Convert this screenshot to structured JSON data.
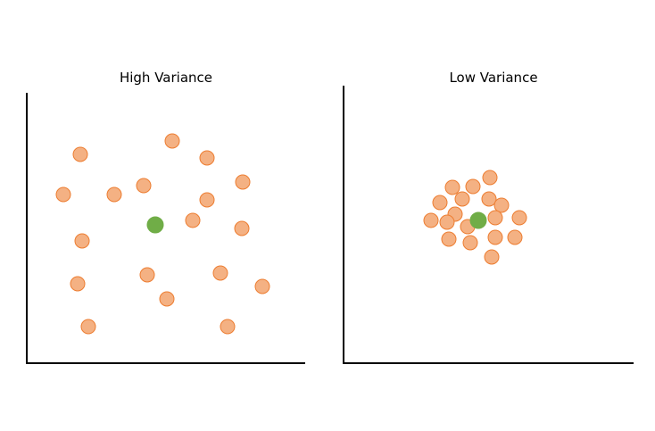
{
  "colors": {
    "sample_fill": "#f4b183",
    "sample_stroke": "#ed7d31",
    "center_fill": "#70ad47",
    "axis": "#000000"
  },
  "panels": [
    {
      "title": "High Variance",
      "samples": [
        [
          90,
          173
        ],
        [
          193,
          158
        ],
        [
          232,
          177
        ],
        [
          71,
          218
        ],
        [
          128,
          218
        ],
        [
          161,
          208
        ],
        [
          272,
          204
        ],
        [
          232,
          224
        ],
        [
          216,
          247
        ],
        [
          92,
          270
        ],
        [
          271,
          256
        ],
        [
          87,
          318
        ],
        [
          165,
          308
        ],
        [
          247,
          306
        ],
        [
          294,
          321
        ],
        [
          187,
          335
        ],
        [
          99,
          366
        ],
        [
          255,
          366
        ]
      ],
      "center": [
        174,
        252
      ]
    },
    {
      "title": "Low Variance",
      "samples": [
        [
          549,
          199
        ],
        [
          507,
          210
        ],
        [
          530,
          209
        ],
        [
          493,
          227
        ],
        [
          518,
          223
        ],
        [
          548,
          223
        ],
        [
          562,
          230
        ],
        [
          510,
          240
        ],
        [
          483,
          247
        ],
        [
          501,
          249
        ],
        [
          524,
          254
        ],
        [
          555,
          244
        ],
        [
          582,
          244
        ],
        [
          503,
          268
        ],
        [
          527,
          272
        ],
        [
          555,
          266
        ],
        [
          577,
          266
        ],
        [
          551,
          288
        ]
      ],
      "center": [
        536,
        247
      ]
    }
  ]
}
